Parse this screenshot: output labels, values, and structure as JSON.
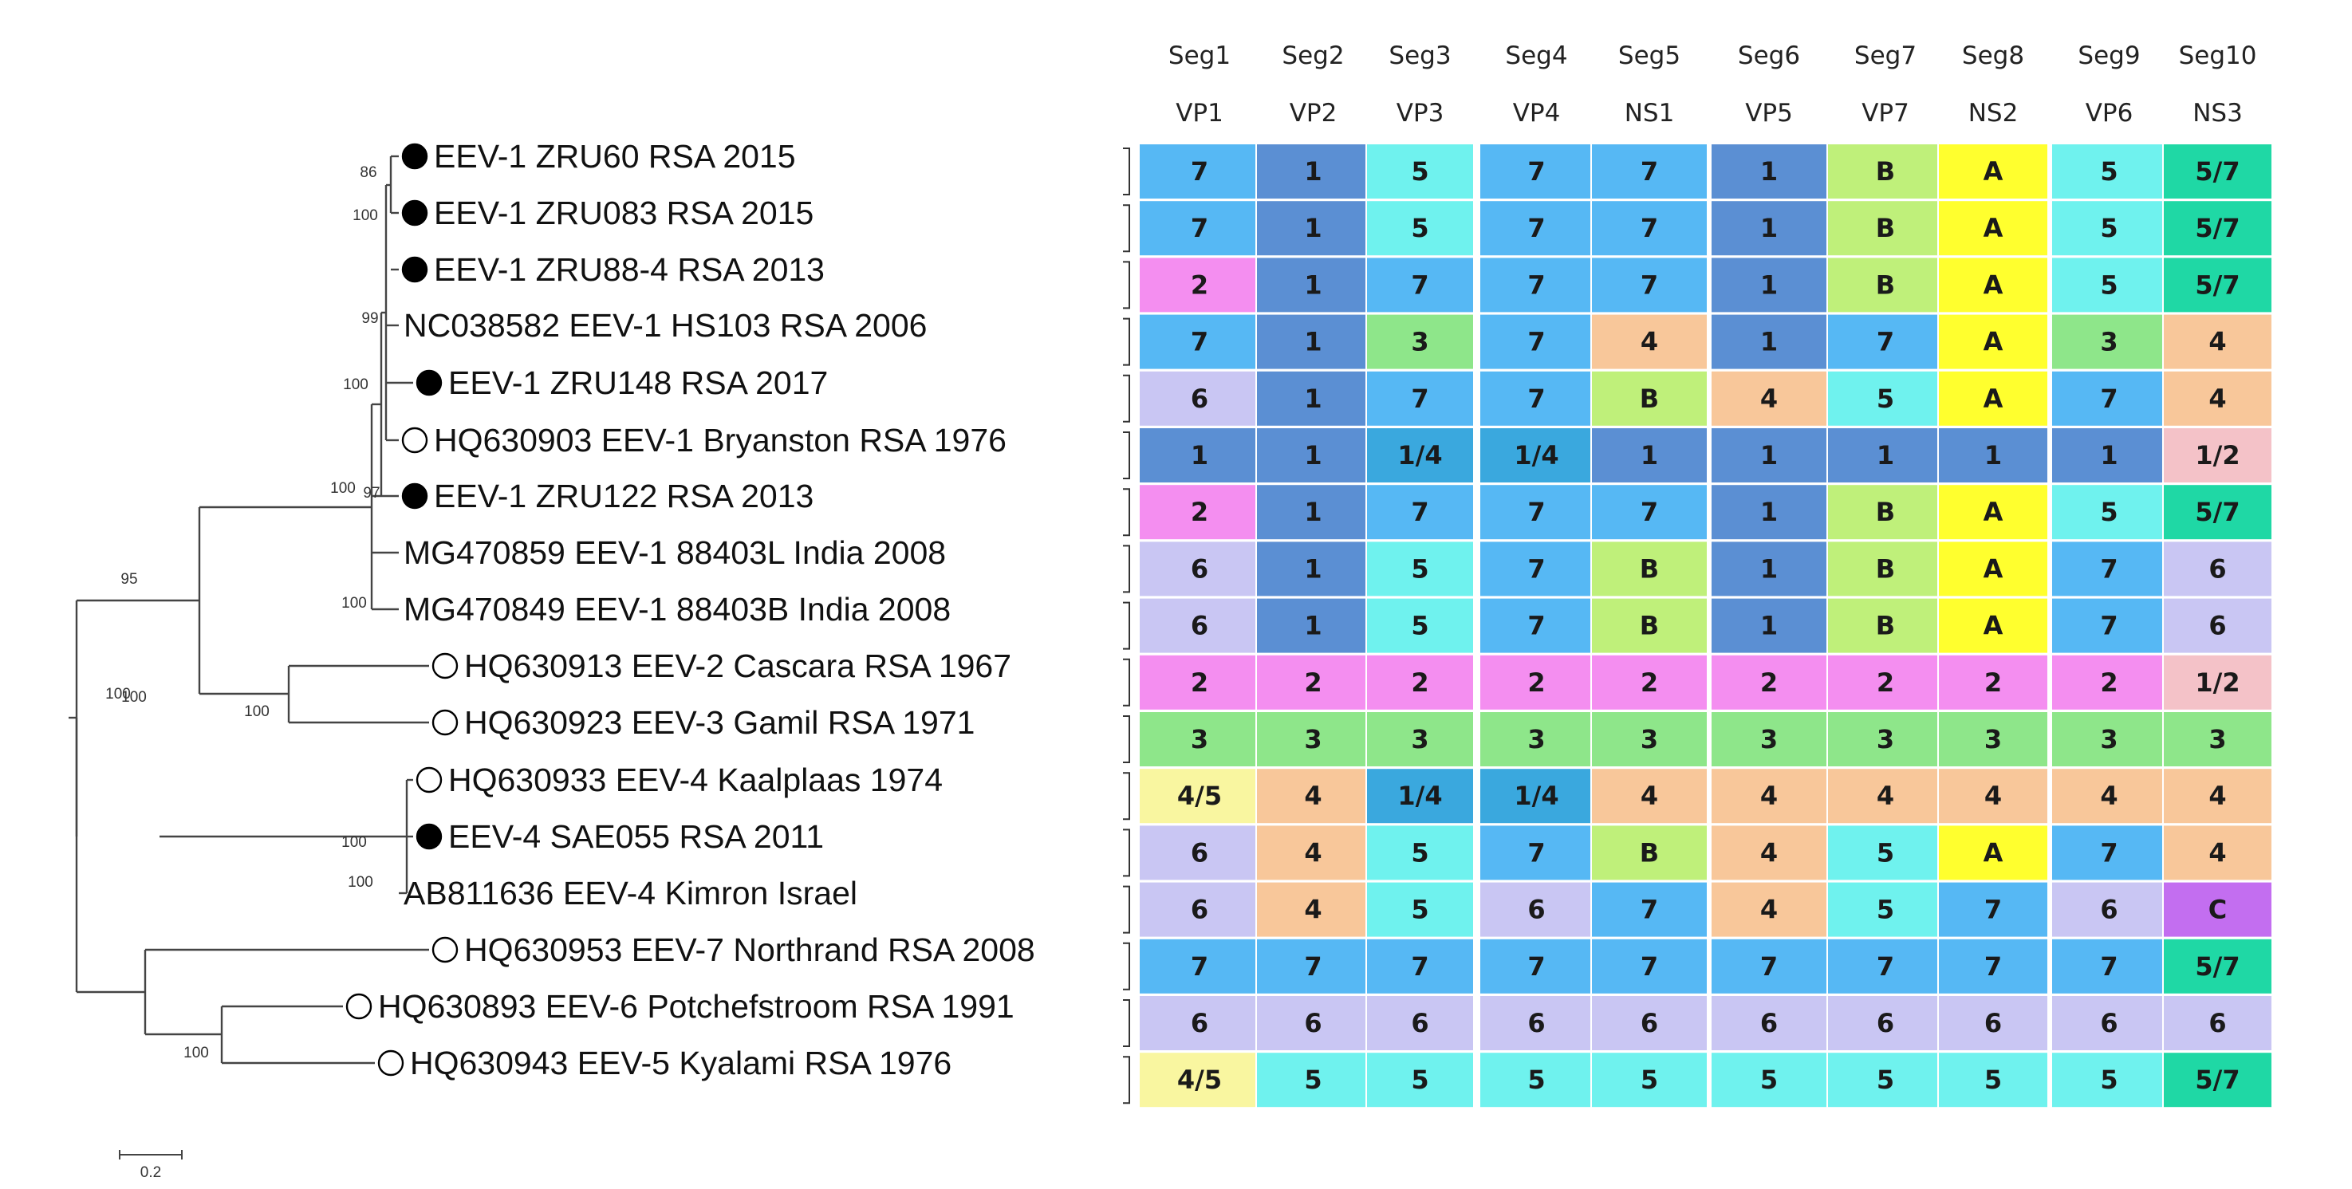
{
  "figure": {
    "scale_label": "0.2",
    "colors": {
      "1": "#5b8fd3",
      "1/2": "#f4c2c8",
      "1/4": "#3aa8de",
      "2": "#f48ef0",
      "3": "#8ee68a",
      "4": "#f8c79a",
      "4/5": "#f9f6a0",
      "5": "#6ff2ee",
      "5/7": "#1fd8a5",
      "6": "#c9c6f3",
      "7": "#56b8f4",
      "A": "#ffff2e",
      "B": "#bff07a",
      "C": "#c36ef0",
      "default": "#ffffff"
    }
  },
  "segments": [
    {
      "seg": "Seg1",
      "protein": "VP1"
    },
    {
      "seg": "Seg2",
      "protein": "VP2"
    },
    {
      "seg": "Seg3",
      "protein": "VP3"
    },
    {
      "seg": "Seg4",
      "protein": "VP4"
    },
    {
      "seg": "Seg5",
      "protein": "NS1"
    },
    {
      "seg": "Seg6",
      "protein": "VP5"
    },
    {
      "seg": "Seg7",
      "protein": "VP7"
    },
    {
      "seg": "Seg8",
      "protein": "NS2"
    },
    {
      "seg": "Seg9",
      "protein": "VP6"
    },
    {
      "seg": "Seg10",
      "protein": "NS3"
    }
  ],
  "taxa": [
    {
      "label": "EEV-1 ZRU60 RSA 2015",
      "marker": "filled",
      "genotypes": [
        "7",
        "1",
        "5",
        "7",
        "7",
        "1",
        "B",
        "A",
        "5",
        "5/7"
      ]
    },
    {
      "label": "EEV-1 ZRU083 RSA 2015",
      "marker": "filled",
      "genotypes": [
        "7",
        "1",
        "5",
        "7",
        "7",
        "1",
        "B",
        "A",
        "5",
        "5/7"
      ]
    },
    {
      "label": "EEV-1 ZRU88-4 RSA 2013",
      "marker": "filled",
      "genotypes": [
        "2",
        "1",
        "7",
        "7",
        "7",
        "1",
        "B",
        "A",
        "5",
        "5/7"
      ]
    },
    {
      "label": "NC038582 EEV-1 HS103 RSA 2006",
      "marker": "none",
      "genotypes": [
        "7",
        "1",
        "3",
        "7",
        "4",
        "1",
        "7",
        "A",
        "3",
        "4"
      ]
    },
    {
      "label": "EEV-1 ZRU148 RSA 2017",
      "marker": "filled",
      "genotypes": [
        "6",
        "1",
        "7",
        "7",
        "B",
        "4",
        "5",
        "A",
        "7",
        "4"
      ]
    },
    {
      "label": "HQ630903 EEV-1 Bryanston RSA 1976",
      "marker": "open",
      "genotypes": [
        "1",
        "1",
        "1/4",
        "1/4",
        "1",
        "1",
        "1",
        "1",
        "1",
        "1/2"
      ]
    },
    {
      "label": "EEV-1 ZRU122 RSA 2013",
      "marker": "filled",
      "genotypes": [
        "2",
        "1",
        "7",
        "7",
        "7",
        "1",
        "B",
        "A",
        "5",
        "5/7"
      ]
    },
    {
      "label": "MG470859 EEV-1 88403L India 2008",
      "marker": "none",
      "genotypes": [
        "6",
        "1",
        "5",
        "7",
        "B",
        "1",
        "B",
        "A",
        "7",
        "6"
      ]
    },
    {
      "label": "MG470849 EEV-1 88403B India 2008",
      "marker": "none",
      "genotypes": [
        "6",
        "1",
        "5",
        "7",
        "B",
        "1",
        "B",
        "A",
        "7",
        "6"
      ]
    },
    {
      "label": "HQ630913 EEV-2 Cascara RSA 1967",
      "marker": "open",
      "genotypes": [
        "2",
        "2",
        "2",
        "2",
        "2",
        "2",
        "2",
        "2",
        "2",
        "1/2"
      ]
    },
    {
      "label": "HQ630923 EEV-3 Gamil RSA 1971",
      "marker": "open",
      "genotypes": [
        "3",
        "3",
        "3",
        "3",
        "3",
        "3",
        "3",
        "3",
        "3",
        "3"
      ]
    },
    {
      "label": "HQ630933 EEV-4 Kaalplaas 1974",
      "marker": "open",
      "genotypes": [
        "4/5",
        "4",
        "1/4",
        "1/4",
        "4",
        "4",
        "4",
        "4",
        "4",
        "4"
      ]
    },
    {
      "label": "EEV-4 SAE055 RSA 2011",
      "marker": "filled",
      "genotypes": [
        "6",
        "4",
        "5",
        "7",
        "B",
        "4",
        "5",
        "A",
        "7",
        "4"
      ]
    },
    {
      "label": "AB811636 EEV-4 Kimron Israel",
      "marker": "none",
      "genotypes": [
        "6",
        "4",
        "5",
        "6",
        "7",
        "4",
        "5",
        "7",
        "6",
        "C"
      ]
    },
    {
      "label": "HQ630953 EEV-7 Northrand RSA 2008",
      "marker": "open",
      "genotypes": [
        "7",
        "7",
        "7",
        "7",
        "7",
        "7",
        "7",
        "7",
        "7",
        "5/7"
      ]
    },
    {
      "label": "HQ630893 EEV-6 Potchefstroom RSA 1991",
      "marker": "open",
      "genotypes": [
        "6",
        "6",
        "6",
        "6",
        "6",
        "6",
        "6",
        "6",
        "6",
        "6"
      ]
    },
    {
      "label": "HQ630943 EEV-5 Kyalami RSA 1976",
      "marker": "open",
      "genotypes": [
        "4/5",
        "5",
        "5",
        "5",
        "5",
        "5",
        "5",
        "5",
        "5",
        "5/7"
      ]
    }
  ],
  "bootstrap": [
    "86",
    "100",
    "99",
    "100",
    "100",
    "97",
    "100",
    "95",
    "100",
    "100",
    "100",
    "100",
    "100",
    "100"
  ]
}
